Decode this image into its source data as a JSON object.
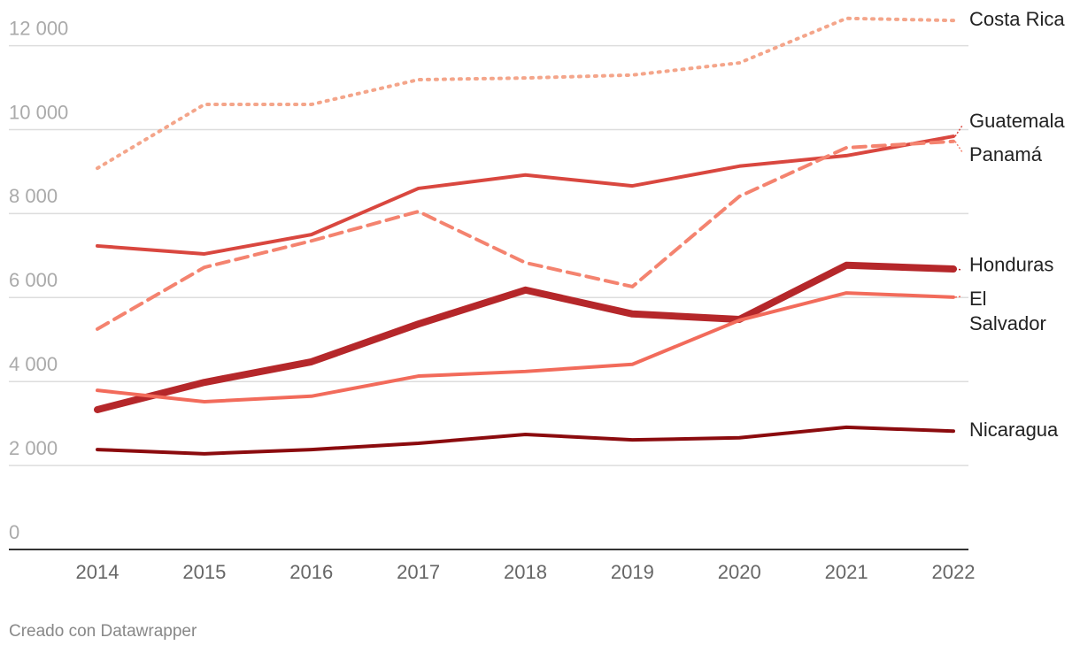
{
  "chart_data": {
    "type": "line",
    "credit": "Creado con Datawrapper",
    "categories": [
      "2014",
      "2015",
      "2016",
      "2017",
      "2018",
      "2019",
      "2020",
      "2021",
      "2022"
    ],
    "ylim": [
      0,
      12700
    ],
    "yticks": [
      0,
      {
        "value": 2000,
        "label": "2 000"
      },
      {
        "value": 4000,
        "label": "4 000"
      },
      {
        "value": 6000,
        "label": "6 000"
      },
      {
        "value": 8000,
        "label": "8 000"
      },
      {
        "value": 10000,
        "label": "10 000"
      },
      {
        "value": 12000,
        "label": "12 000"
      }
    ],
    "grid": true,
    "series": [
      {
        "name": "Costa Rica",
        "color": "#f4a58a",
        "style": "dotted",
        "width": 4,
        "values": [
          9080,
          10600,
          10600,
          11190,
          11230,
          11300,
          11590,
          12650,
          12600
        ]
      },
      {
        "name": "Guatemala",
        "color": "#d9473f",
        "style": "solid",
        "width": 4,
        "values": [
          7230,
          7040,
          7500,
          8600,
          8920,
          8660,
          9130,
          9380,
          9840
        ]
      },
      {
        "name": "Panamá",
        "color": "#f4836f",
        "style": "dashed",
        "width": 4,
        "values": [
          5250,
          6720,
          7350,
          8050,
          6830,
          6260,
          8410,
          9570,
          9720
        ]
      },
      {
        "name": "Honduras",
        "color": "#b5272a",
        "style": "solid",
        "width": 8,
        "values": [
          3330,
          3980,
          4470,
          5370,
          6180,
          5610,
          5480,
          6770,
          6680
        ]
      },
      {
        "name": "El Salvador",
        "color": "#f26b5b",
        "style": "solid",
        "width": 4,
        "values": [
          3790,
          3520,
          3650,
          4130,
          4240,
          4410,
          5460,
          6110,
          6010
        ]
      },
      {
        "name": "Nicaragua",
        "color": "#8b0b0e",
        "style": "solid",
        "width": 4,
        "values": [
          2380,
          2280,
          2380,
          2530,
          2740,
          2610,
          2660,
          2910,
          2820
        ]
      }
    ]
  }
}
